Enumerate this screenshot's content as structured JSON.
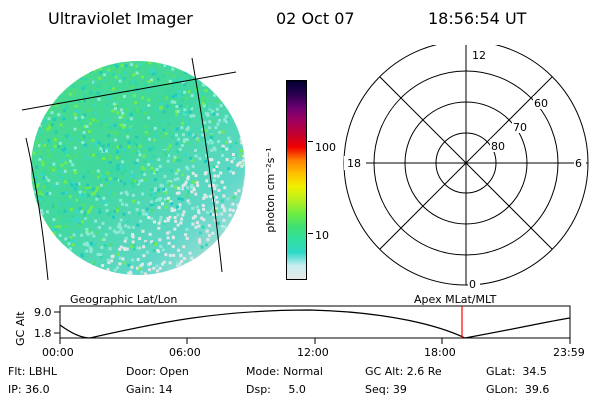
{
  "header": {
    "title": "Ultraviolet Imager",
    "date": "02 Oct 07",
    "time": "18:56:54 UT"
  },
  "colorbar": {
    "ylabel": "photon cm⁻²s⁻¹",
    "ticks": [
      "100",
      "10"
    ],
    "colors": [
      "#e8e8e8",
      "#c8eef0",
      "#30d8c8",
      "#30e0a0",
      "#40e070",
      "#70ee40",
      "#b8f020",
      "#f0f000",
      "#ffc000",
      "#ff8000",
      "#f00000",
      "#c00030",
      "#a00060",
      "#6a0070",
      "#2a0050",
      "#000030"
    ]
  },
  "polar": {
    "hour_labels": [
      "12",
      "18",
      "6",
      "0"
    ],
    "lat_labels": [
      "60",
      "70",
      "80"
    ]
  },
  "captions": {
    "left": "Geographic Lat/Lon",
    "right": "Apex  MLat/MLT"
  },
  "alt_panel": {
    "ylabel": "GC Alt",
    "yticks": [
      "9.0",
      "1.8"
    ],
    "xticks": [
      "00:00",
      "06:00",
      "12:00",
      "18:00",
      "23:59"
    ],
    "marker_color": "#ff0000"
  },
  "info": {
    "flt": "Flt: LBHL",
    "ip": "IP: 36.0",
    "door": "Door: Open",
    "gain": "Gain: 14",
    "mode": "Mode: Normal",
    "dsp": "Dsp:     5.0",
    "gcalt": "GC Alt: 2.6 Re",
    "seq": "Seq: 39",
    "glat": "GLat:  34.5",
    "glon": "GLon:  39.6"
  }
}
